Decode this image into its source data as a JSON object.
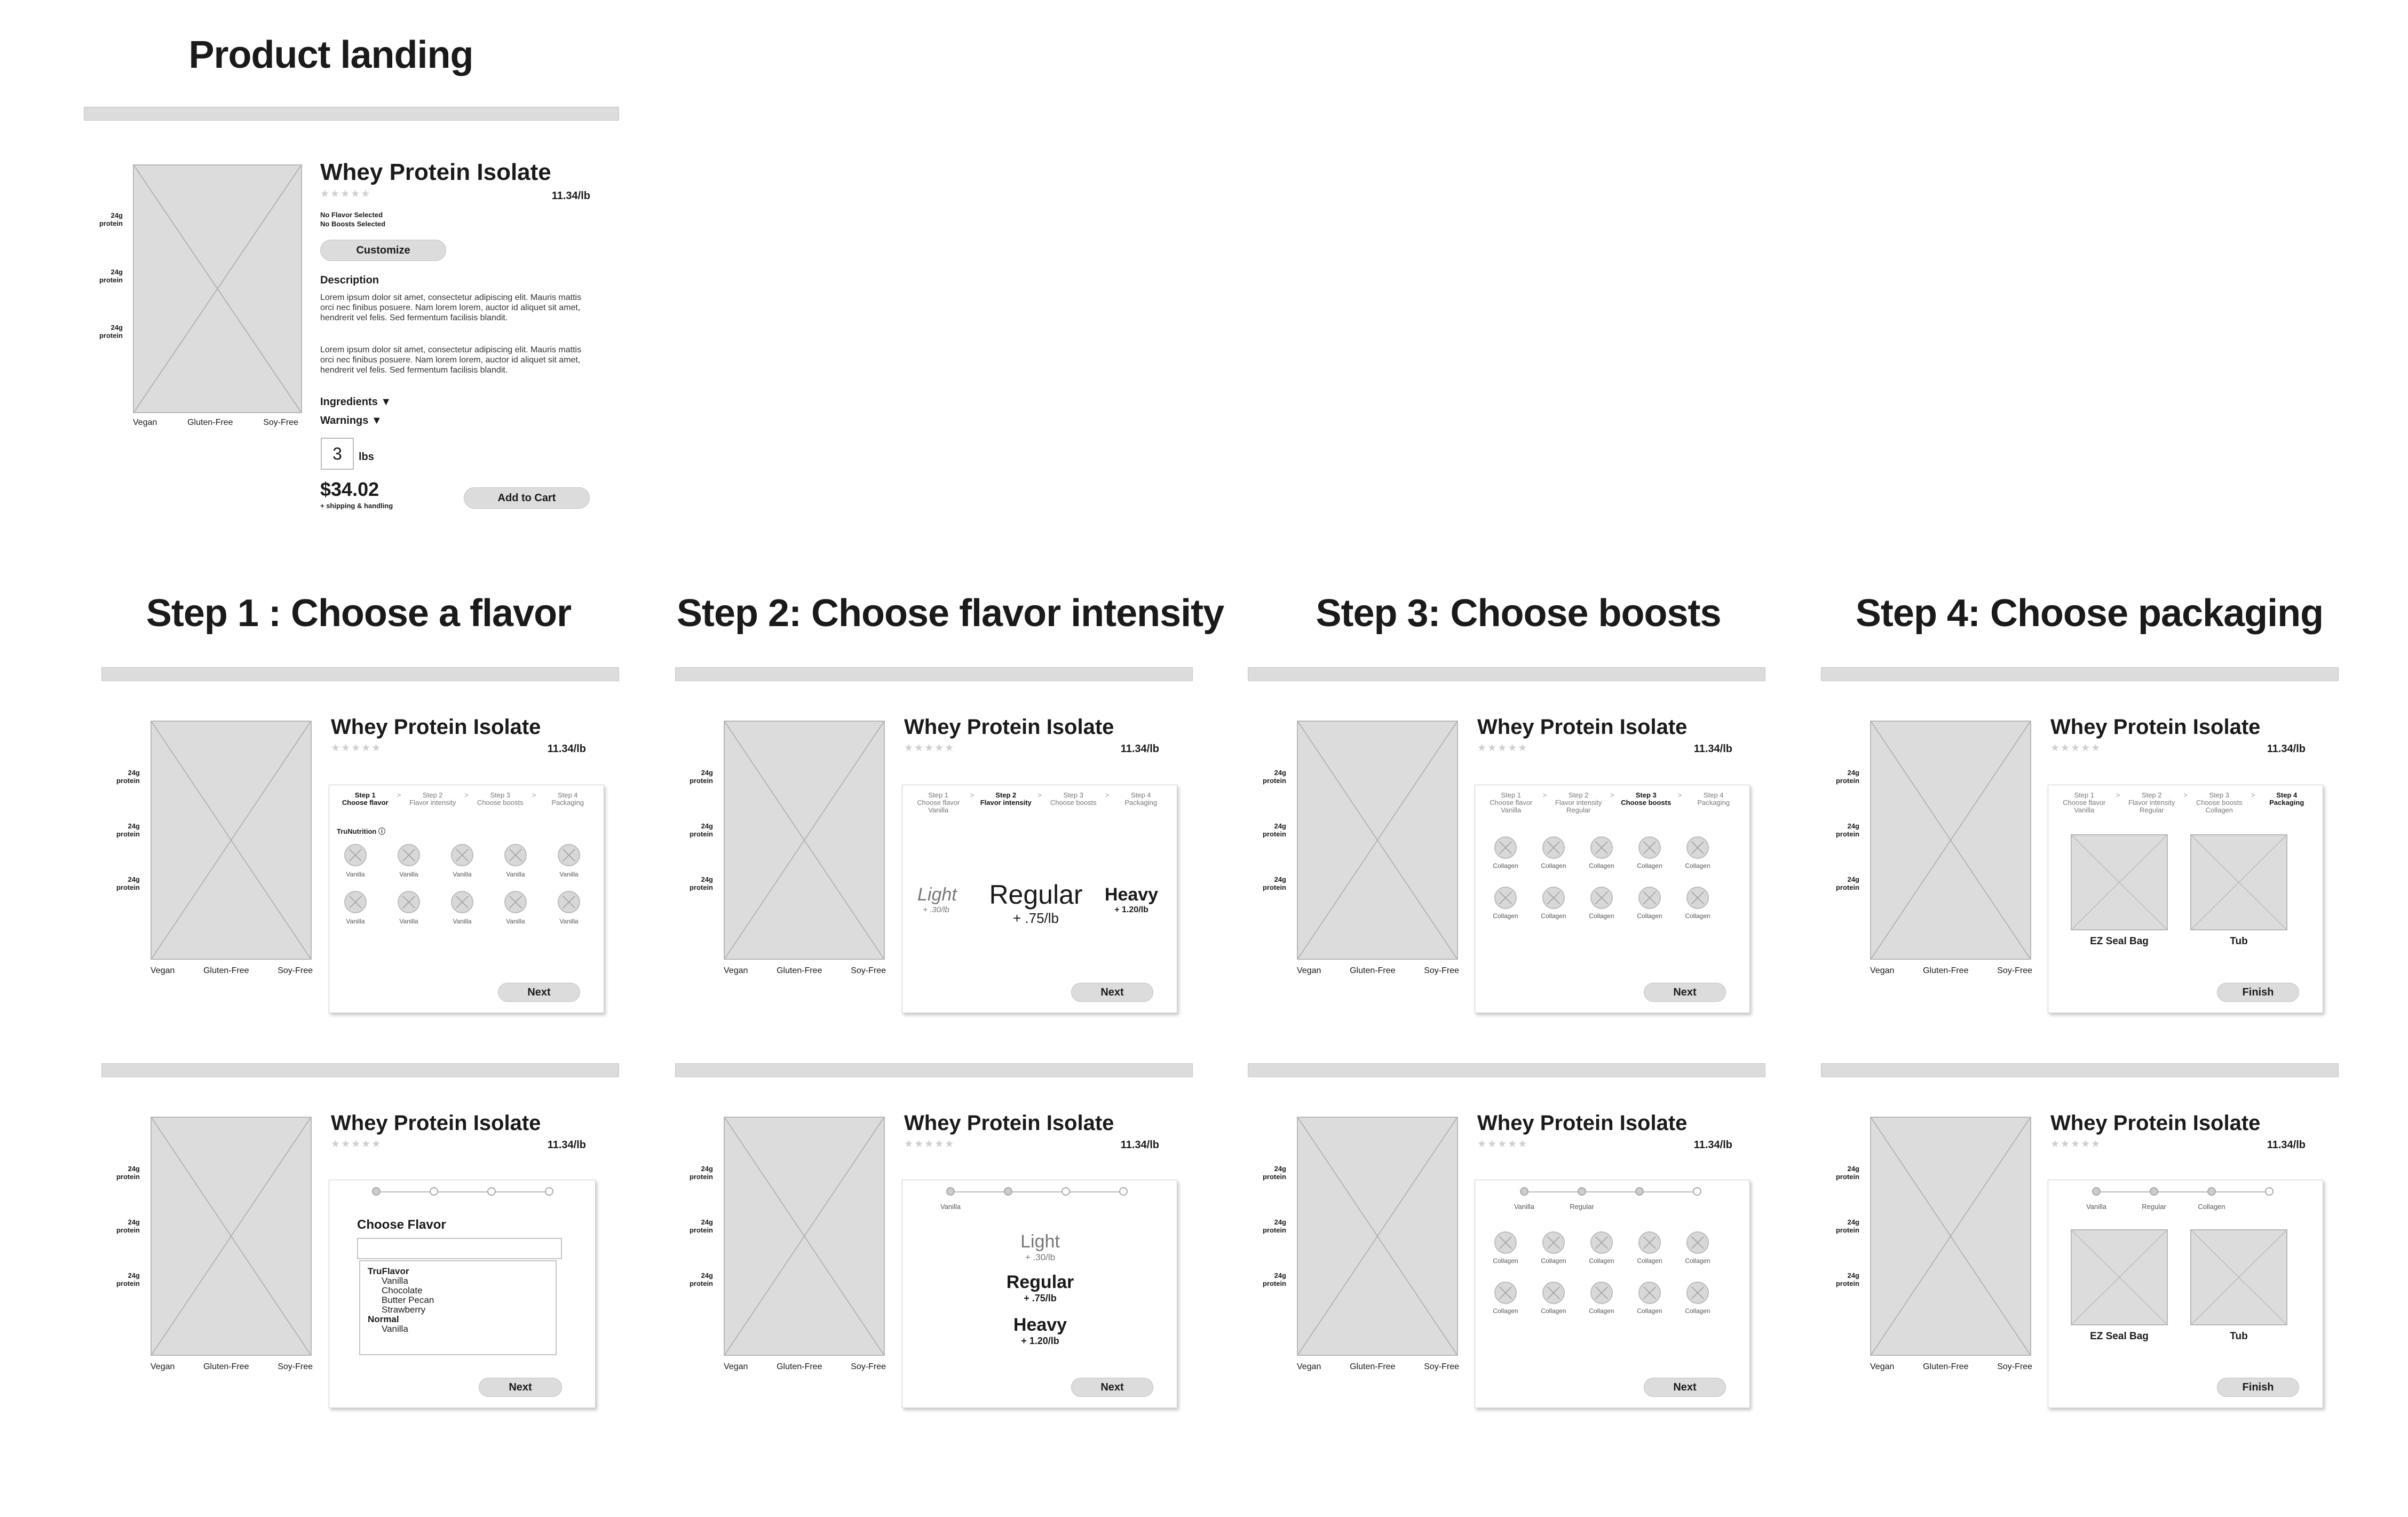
{
  "headings": {
    "landing": "Product landing",
    "step1": "Step 1 : Choose a flavor",
    "step2": "Step 2: Choose flavor intensity",
    "step3": "Step 3: Choose boosts",
    "step4": "Step 4: Choose packaging"
  },
  "product": {
    "title": "Whey Protein Isolate",
    "stars": "★★★★★",
    "price_per_lb": "11.34/lb",
    "side_label_top": "24g",
    "side_label_bottom": "protein",
    "tags": [
      "Vegan",
      "Gluten-Free",
      "Soy-Free"
    ]
  },
  "landing": {
    "no_flavor": "No Flavor Selected",
    "no_boosts": "No Boosts Selected",
    "customize": "Customize",
    "description_heading": "Description",
    "description_p1": "Lorem ipsum dolor sit amet, consectetur adipiscing elit. Mauris mattis orci nec finibus posuere. Nam lorem lorem, auctor id aliquet sit amet, hendrerit vel felis. Sed fermentum facilisis blandit.",
    "description_p2": "Lorem ipsum dolor sit amet, consectetur adipiscing elit. Mauris mattis orci nec finibus posuere. Nam lorem lorem, auctor id aliquet sit amet, hendrerit vel felis. Sed fermentum facilisis blandit.",
    "ingredients": "Ingredients ▼",
    "warnings": "Warnings ▼",
    "quantity": "3",
    "unit": "lbs",
    "total": "$34.02",
    "shipping_note": "+ shipping & handling",
    "add_to_cart": "Add to Cart"
  },
  "wizard": {
    "step1_line1": "Step 1",
    "step1_line2": "Choose flavor",
    "step2_line1": "Step 2",
    "step2_line2": "Flavor intensity",
    "step3_line1": "Step 3",
    "step3_line2": "Choose boosts",
    "step4_line1": "Step 4",
    "step4_line2": "Packaging",
    "sel_flavor": "Vanilla",
    "sel_intensity": "Regular",
    "sel_boost": "Collagen",
    "arrow": ">"
  },
  "flavor_panel": {
    "brand_label": "TruNutrition ⓘ",
    "item_label": "Vanilla",
    "next": "Next"
  },
  "intensity_panel": {
    "light": "Light",
    "light_price": "+ .30/lb",
    "regular": "Regular",
    "regular_price": "+ .75/lb",
    "heavy": "Heavy",
    "heavy_price": "+ 1.20/lb",
    "next": "Next"
  },
  "boosts_panel": {
    "item_label": "Collagen",
    "next": "Next"
  },
  "packaging_panel": {
    "option1": "EZ Seal Bag",
    "option2": "Tub",
    "finish": "Finish"
  },
  "dropdown_panel": {
    "label": "Choose Flavor",
    "group1": "TruFlavor",
    "options1": [
      "Vanilla",
      "Chocolate",
      "Butter Pecan",
      "Strawberry"
    ],
    "group2": "Normal",
    "options2": [
      "Vanilla"
    ],
    "next": "Next"
  },
  "colors": {
    "placeholder_fill": "#dcdcdc",
    "button_fill": "#dcdcdc",
    "text": "#1a1a1a"
  }
}
